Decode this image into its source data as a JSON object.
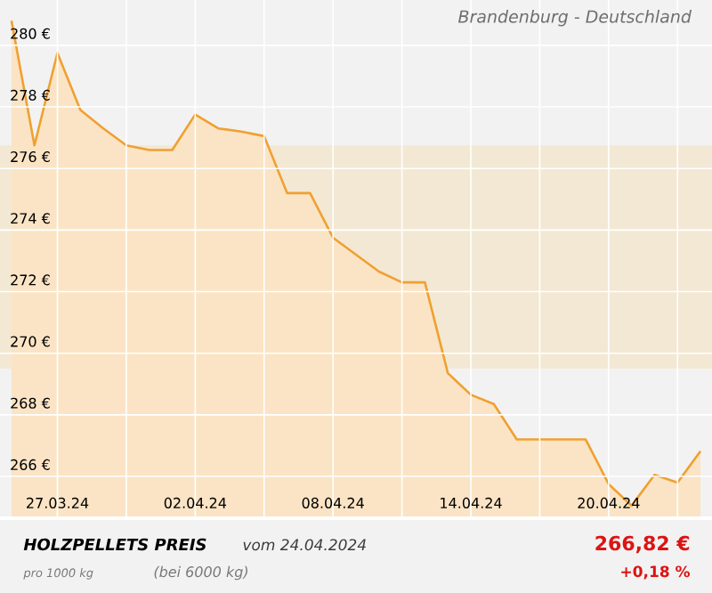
{
  "chart_data": {
    "type": "area",
    "title": "Brandenburg - Deutschland",
    "x": [
      "2024-03-25",
      "2024-03-26",
      "2024-03-27",
      "2024-03-28",
      "2024-03-29",
      "2024-03-30",
      "2024-03-31",
      "2024-04-01",
      "2024-04-02",
      "2024-04-03",
      "2024-04-04",
      "2024-04-05",
      "2024-04-06",
      "2024-04-07",
      "2024-04-08",
      "2024-04-09",
      "2024-04-10",
      "2024-04-11",
      "2024-04-12",
      "2024-04-13",
      "2024-04-14",
      "2024-04-15",
      "2024-04-16",
      "2024-04-17",
      "2024-04-18",
      "2024-04-19",
      "2024-04-20",
      "2024-04-21",
      "2024-04-22",
      "2024-04-23",
      "2024-04-24"
    ],
    "series": [
      {
        "color": "#f0a030",
        "values": [
          280.8,
          276.75,
          279.75,
          277.9,
          277.3,
          276.75,
          276.6,
          276.6,
          277.75,
          277.3,
          277.2,
          277.05,
          275.2,
          275.2,
          273.75,
          273.2,
          272.65,
          272.3,
          272.3,
          269.35,
          268.65,
          268.35,
          267.2,
          267.2,
          267.2,
          267.2,
          265.75,
          265.05,
          266.05,
          265.8,
          266.82
        ]
      }
    ],
    "xlim": [
      "2024-03-24T12:00",
      "2024-04-24T12:00"
    ],
    "xticks": [
      {
        "value": "2024-03-27",
        "label": "27.03.24"
      },
      {
        "value": "2024-03-30",
        "label": null
      },
      {
        "value": "2024-04-02",
        "label": "02.04.24"
      },
      {
        "value": "2024-04-05",
        "label": null
      },
      {
        "value": "2024-04-08",
        "label": "08.04.24"
      },
      {
        "value": "2024-04-11",
        "label": null
      },
      {
        "value": "2024-04-14",
        "label": "14.04.24"
      },
      {
        "value": "2024-04-17",
        "label": null
      },
      {
        "value": "2024-04-20",
        "label": "20.04.24"
      },
      {
        "value": "2024-04-23",
        "label": null
      }
    ],
    "ylim": [
      264.7,
      281.47
    ],
    "yticks": [
      {
        "value": 266,
        "label": "266 €"
      },
      {
        "value": 268,
        "label": "268 €"
      },
      {
        "value": 270,
        "label": "270 €"
      },
      {
        "value": 272,
        "label": "272 €"
      },
      {
        "value": 274,
        "label": "274 €"
      },
      {
        "value": 276,
        "label": "276 €"
      },
      {
        "value": 278,
        "label": "278 €"
      },
      {
        "value": 280,
        "label": "280 €"
      }
    ],
    "grid": true,
    "bands": [
      {
        "axis": "y",
        "from": 269.5,
        "to": 276.75,
        "color": "#f3e8d4"
      }
    ],
    "annotations": [
      "**HOLZPELLETS PREIS**",
      "vom 24.04.2024",
      "pro 1000 kg",
      "(bei 6000 kg)",
      "266,82 €",
      "+0,18 %"
    ]
  }
}
